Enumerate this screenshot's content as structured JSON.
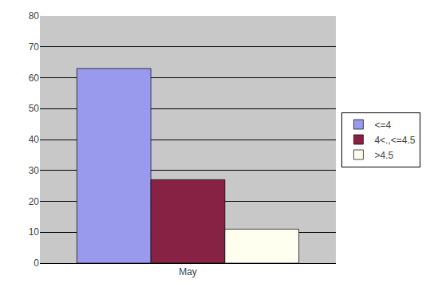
{
  "chart_data": {
    "type": "bar",
    "categories": [
      "May"
    ],
    "series": [
      {
        "name": "<=4",
        "color": "#9999ee",
        "values": [
          63
        ]
      },
      {
        "name": "4<.,<=4.5",
        "color": "#882244",
        "values": [
          27
        ]
      },
      {
        "name": ">4.5",
        "color": "#fffff0",
        "values": [
          11
        ]
      }
    ],
    "ylim": [
      0,
      80
    ],
    "yticks": [
      0,
      10,
      20,
      30,
      40,
      50,
      60,
      70,
      80
    ],
    "grid": true,
    "legend": "right"
  }
}
